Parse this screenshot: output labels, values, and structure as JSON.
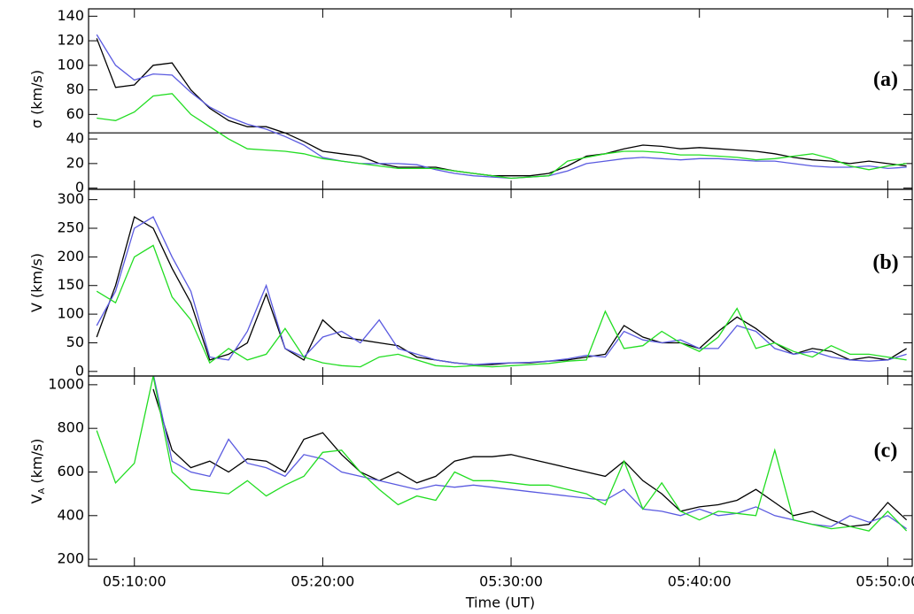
{
  "chart_data": [
    {
      "type": "line",
      "ylabel": "σ (km/s)",
      "annotation": "(a)",
      "hline": 45,
      "xlim": [
        "05:07:34",
        "05:51:18"
      ],
      "ylim": [
        -1,
        146
      ],
      "yticks": [
        0,
        20,
        40,
        60,
        80,
        100,
        120,
        140
      ],
      "x": [
        "05:08:00",
        "05:09:00",
        "05:10:00",
        "05:11:00",
        "05:12:00",
        "05:13:00",
        "05:14:00",
        "05:15:00",
        "05:16:00",
        "05:17:00",
        "05:18:00",
        "05:19:00",
        "05:20:00",
        "05:21:00",
        "05:22:00",
        "05:23:00",
        "05:24:00",
        "05:25:00",
        "05:26:00",
        "05:27:00",
        "05:28:00",
        "05:29:00",
        "05:30:00",
        "05:31:00",
        "05:32:00",
        "05:33:00",
        "05:34:00",
        "05:35:00",
        "05:36:00",
        "05:37:00",
        "05:38:00",
        "05:39:00",
        "05:40:00",
        "05:41:00",
        "05:42:00",
        "05:43:00",
        "05:44:00",
        "05:45:00",
        "05:46:00",
        "05:47:00",
        "05:48:00",
        "05:49:00",
        "05:50:00",
        "05:51:00"
      ],
      "series": [
        {
          "color": "#000000",
          "values": [
            122,
            82,
            84,
            100,
            102,
            80,
            65,
            55,
            50,
            50,
            45,
            38,
            30,
            28,
            26,
            20,
            17,
            17,
            17,
            14,
            12,
            10,
            10,
            10,
            12,
            18,
            26,
            28,
            32,
            35,
            34,
            32,
            33,
            32,
            31,
            30,
            28,
            25,
            23,
            22,
            20,
            22,
            20,
            18
          ]
        },
        {
          "color": "#5a5ae0",
          "values": [
            125,
            100,
            88,
            93,
            92,
            78,
            66,
            58,
            52,
            48,
            42,
            35,
            25,
            22,
            20,
            20,
            20,
            19,
            15,
            12,
            10,
            9,
            8,
            9,
            10,
            14,
            20,
            22,
            24,
            25,
            24,
            23,
            24,
            24,
            23,
            22,
            22,
            20,
            18,
            17,
            17,
            18,
            16,
            17
          ]
        },
        {
          "color": "#22dd22",
          "values": [
            57,
            55,
            62,
            75,
            77,
            60,
            50,
            40,
            32,
            31,
            30,
            28,
            24,
            22,
            20,
            18,
            16,
            16,
            16,
            14,
            12,
            10,
            8,
            9,
            10,
            22,
            25,
            28,
            30,
            30,
            29,
            27,
            27,
            26,
            25,
            23,
            24,
            26,
            28,
            24,
            18,
            15,
            18,
            20
          ]
        }
      ]
    },
    {
      "type": "line",
      "ylabel": "V (km/s)",
      "annotation": "(b)",
      "xlim": [
        "05:07:34",
        "05:51:18"
      ],
      "ylim": [
        -8,
        318
      ],
      "yticks": [
        0,
        50,
        100,
        150,
        200,
        250,
        300
      ],
      "x": [
        "05:08:00",
        "05:09:00",
        "05:10:00",
        "05:11:00",
        "05:12:00",
        "05:13:00",
        "05:14:00",
        "05:15:00",
        "05:16:00",
        "05:17:00",
        "05:18:00",
        "05:19:00",
        "05:20:00",
        "05:21:00",
        "05:22:00",
        "05:23:00",
        "05:24:00",
        "05:25:00",
        "05:26:00",
        "05:27:00",
        "05:28:00",
        "05:29:00",
        "05:30:00",
        "05:31:00",
        "05:32:00",
        "05:33:00",
        "05:34:00",
        "05:35:00",
        "05:36:00",
        "05:37:00",
        "05:38:00",
        "05:39:00",
        "05:40:00",
        "05:41:00",
        "05:42:00",
        "05:43:00",
        "05:44:00",
        "05:45:00",
        "05:46:00",
        "05:47:00",
        "05:48:00",
        "05:49:00",
        "05:50:00",
        "05:51:00"
      ],
      "series": [
        {
          "color": "#000000",
          "values": [
            60,
            150,
            270,
            250,
            180,
            120,
            20,
            30,
            50,
            135,
            40,
            20,
            90,
            60,
            55,
            50,
            45,
            25,
            20,
            15,
            12,
            12,
            15,
            15,
            18,
            20,
            25,
            30,
            80,
            60,
            50,
            50,
            40,
            70,
            95,
            75,
            50,
            30,
            40,
            35,
            20,
            25,
            20,
            40
          ]
        },
        {
          "color": "#5a5ae0",
          "values": [
            80,
            140,
            250,
            270,
            200,
            140,
            25,
            20,
            70,
            150,
            40,
            25,
            60,
            70,
            50,
            90,
            40,
            30,
            20,
            15,
            12,
            14,
            15,
            16,
            18,
            22,
            28,
            25,
            70,
            55,
            50,
            55,
            40,
            40,
            80,
            70,
            40,
            30,
            35,
            25,
            20,
            18,
            20,
            30
          ]
        },
        {
          "color": "#22dd22",
          "values": [
            140,
            120,
            200,
            220,
            130,
            90,
            15,
            40,
            20,
            30,
            75,
            25,
            15,
            10,
            8,
            25,
            30,
            20,
            10,
            8,
            10,
            8,
            10,
            12,
            14,
            18,
            20,
            105,
            40,
            45,
            70,
            50,
            35,
            60,
            110,
            40,
            50,
            35,
            25,
            45,
            30,
            30,
            25,
            20
          ]
        }
      ]
    },
    {
      "type": "line",
      "ylabel": "V",
      "ylabel_subscript": "A",
      "ylabel_unit": "(km/s)",
      "annotation": "(c)",
      "xlabel": "Time (UT)",
      "xlim": [
        "05:07:34",
        "05:51:18"
      ],
      "xticks": [
        "05:10:00",
        "05:20:00",
        "05:30:00",
        "05:40:00",
        "05:50:00"
      ],
      "ylim": [
        168,
        1040
      ],
      "yticks": [
        200,
        400,
        600,
        800,
        1000
      ],
      "x": [
        "05:08:00",
        "05:09:00",
        "05:10:00",
        "05:11:00",
        "05:12:00",
        "05:13:00",
        "05:14:00",
        "05:15:00",
        "05:16:00",
        "05:17:00",
        "05:18:00",
        "05:19:00",
        "05:20:00",
        "05:21:00",
        "05:22:00",
        "05:23:00",
        "05:24:00",
        "05:25:00",
        "05:26:00",
        "05:27:00",
        "05:28:00",
        "05:29:00",
        "05:30:00",
        "05:31:00",
        "05:32:00",
        "05:33:00",
        "05:34:00",
        "05:35:00",
        "05:36:00",
        "05:37:00",
        "05:38:00",
        "05:39:00",
        "05:40:00",
        "05:41:00",
        "05:42:00",
        "05:43:00",
        "05:44:00",
        "05:45:00",
        "05:46:00",
        "05:47:00",
        "05:48:00",
        "05:49:00",
        "05:50:00",
        "05:51:00"
      ],
      "series": [
        {
          "color": "#000000",
          "values": [
            null,
            null,
            null,
            980,
            700,
            620,
            650,
            600,
            660,
            650,
            600,
            750,
            780,
            680,
            600,
            560,
            600,
            550,
            580,
            650,
            670,
            670,
            680,
            660,
            640,
            620,
            600,
            580,
            650,
            560,
            500,
            420,
            440,
            450,
            470,
            520,
            460,
            400,
            420,
            380,
            350,
            360,
            460,
            380
          ]
        },
        {
          "color": "#5a5ae0",
          "values": [
            null,
            null,
            null,
            1050,
            650,
            600,
            580,
            750,
            640,
            620,
            580,
            680,
            660,
            600,
            580,
            560,
            540,
            520,
            540,
            530,
            540,
            530,
            520,
            510,
            500,
            490,
            480,
            470,
            520,
            430,
            420,
            400,
            430,
            400,
            410,
            440,
            400,
            380,
            360,
            350,
            400,
            370,
            400,
            340
          ]
        },
        {
          "color": "#22dd22",
          "values": [
            790,
            550,
            640,
            1040,
            600,
            520,
            510,
            500,
            560,
            490,
            540,
            580,
            690,
            700,
            600,
            520,
            450,
            490,
            470,
            600,
            560,
            560,
            550,
            540,
            540,
            520,
            500,
            450,
            650,
            430,
            550,
            420,
            380,
            420,
            410,
            400,
            700,
            380,
            360,
            340,
            350,
            330,
            420,
            330
          ]
        }
      ]
    }
  ]
}
